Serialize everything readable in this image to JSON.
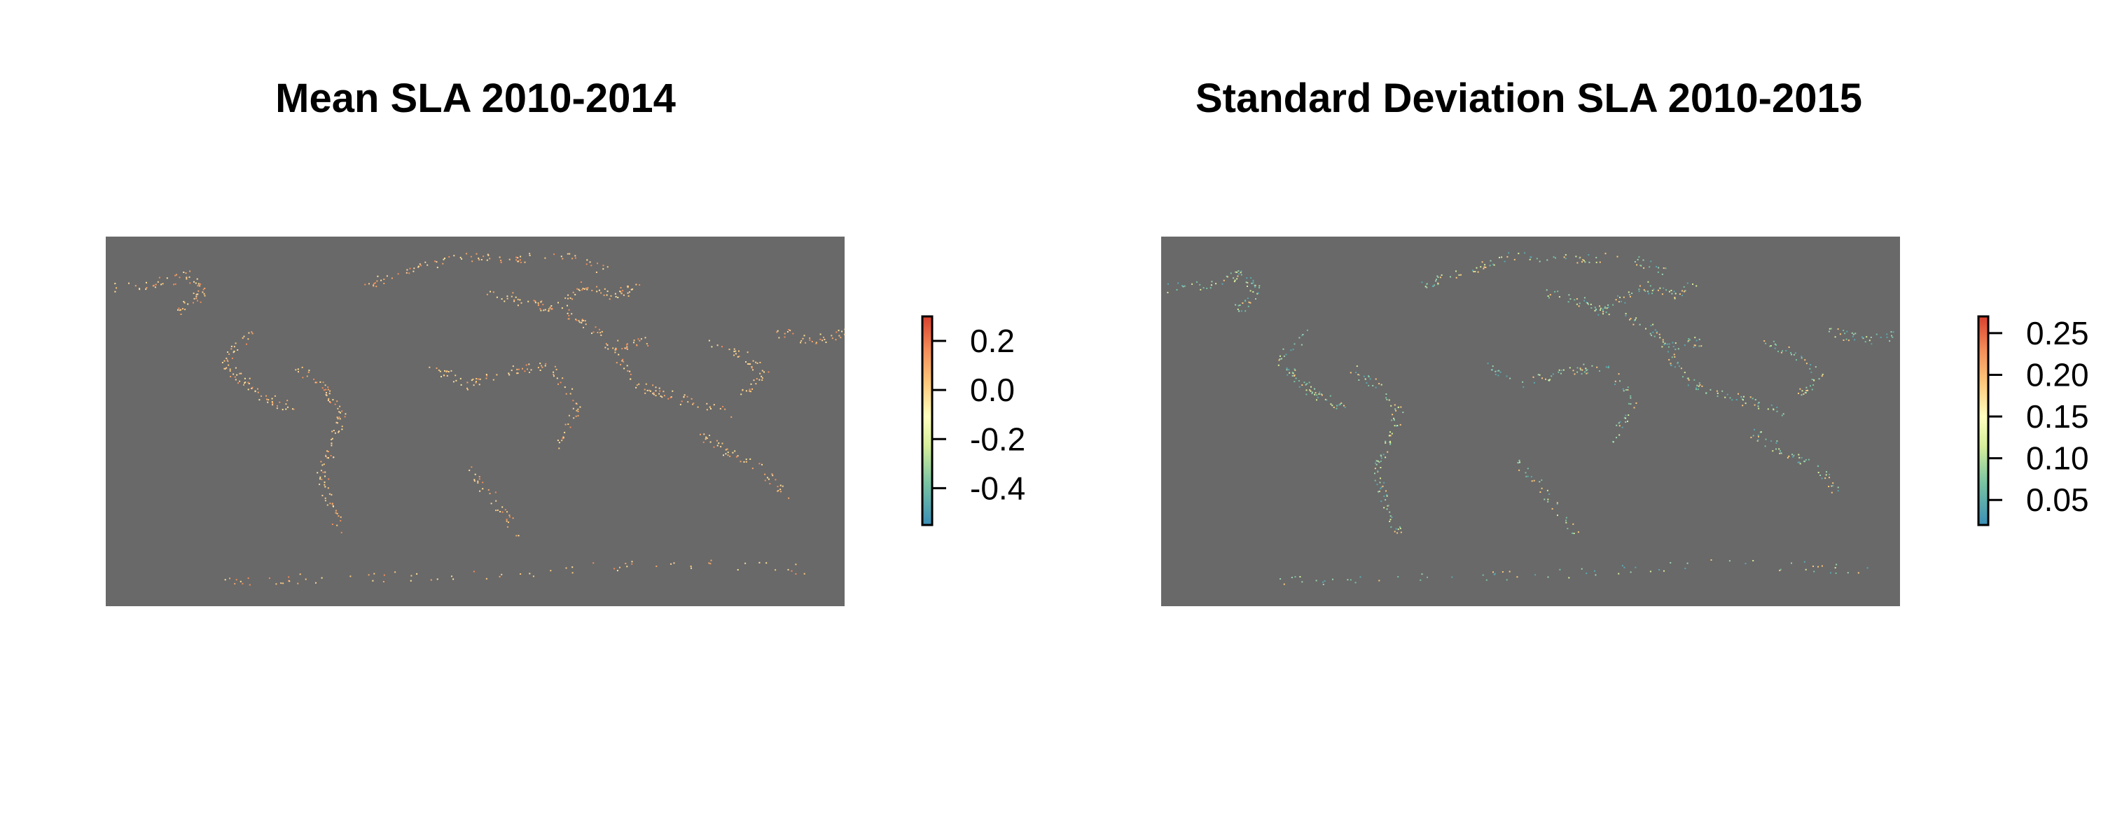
{
  "panels": [
    {
      "title": "Mean SLA 2010-2014",
      "legend": {
        "ticks": [
          "0.2",
          "0.0",
          "-0.2",
          "-0.4"
        ],
        "tick_values": [
          0.2,
          0.0,
          -0.2,
          -0.4
        ],
        "range": [
          -0.55,
          0.3
        ]
      },
      "dominant_tone": "warm"
    },
    {
      "title": "Standard Deviation SLA 2010-2015",
      "legend": {
        "ticks": [
          "0.25",
          "0.20",
          "0.15",
          "0.10",
          "0.05"
        ],
        "tick_values": [
          0.25,
          0.2,
          0.15,
          0.1,
          0.05
        ],
        "range": [
          0.02,
          0.27
        ]
      },
      "dominant_tone": "mixed"
    }
  ],
  "colors": {
    "map_background": "#696969",
    "palette": [
      "#3a8fb7",
      "#79c3a3",
      "#d6ee9b",
      "#ffffbf",
      "#fdc97c",
      "#f48d59",
      "#d8412e"
    ]
  }
}
